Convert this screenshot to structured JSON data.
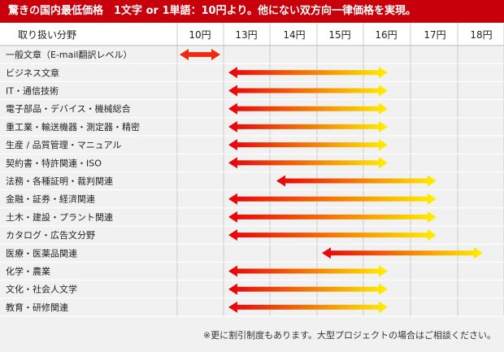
{
  "banner": {
    "text": "驚きの国内最低価格　1文字 or 1単語：10円より。他にない双方向一律価格を実現。"
  },
  "header": {
    "category_col": "取り扱い分野"
  },
  "footnote": "※更に割引制度もあります。大型プロジェクトの場合はご相談ください。",
  "chart_data": {
    "type": "bar",
    "title": "",
    "x": [
      10,
      13,
      14,
      15,
      16,
      17,
      18
    ],
    "x_labels": [
      "10円",
      "13円",
      "14円",
      "15円",
      "16円",
      "17円",
      "18円"
    ],
    "categories": [
      "一般文章（E-mail翻訳レベル）",
      "ビジネス文章",
      "IT・通信技術",
      "電子部品・デバイス・機械総合",
      "重工業・輸送機器・測定器・精密",
      "生産 / 品質管理・マニュアル",
      "契約書・特許関連・ISO",
      "法務・各種証明・裁判関連",
      "金融・証券・経済関連",
      "土木・建設・プラント関連",
      "カタログ・広告文分野",
      "医療・医薬品関連",
      "化学・農業",
      "文化・社会人文学",
      "教育・研修関連"
    ],
    "ranges": [
      [
        10,
        10
      ],
      [
        13,
        16
      ],
      [
        13,
        16
      ],
      [
        13,
        16
      ],
      [
        13,
        16
      ],
      [
        13,
        16
      ],
      [
        13,
        16
      ],
      [
        14,
        17
      ],
      [
        13,
        17
      ],
      [
        13,
        17
      ],
      [
        13,
        17
      ],
      [
        15,
        18
      ],
      [
        13,
        16
      ],
      [
        13,
        16
      ],
      [
        13,
        16
      ]
    ],
    "colors": {
      "start": "#e8000c",
      "end": "#fff000",
      "banner": "#c8000b"
    }
  }
}
